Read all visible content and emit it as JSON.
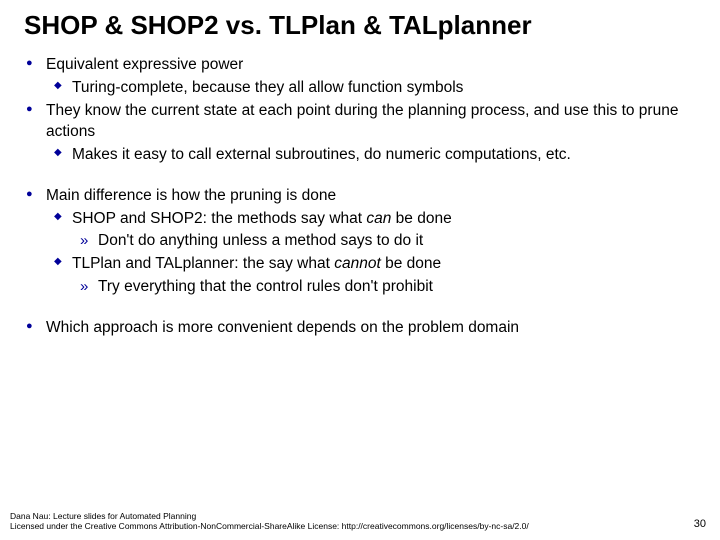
{
  "title": "SHOP & SHOP2 vs. TLPlan & TALplanner",
  "bullets": {
    "b1": "Equivalent expressive power",
    "b1a": "Turing-complete, because they all allow function symbols",
    "b2": "They know the current state at each point during the planning process, and use this to prune actions",
    "b2a": "Makes it easy to call external subroutines, do numeric computations, etc.",
    "b3": "Main difference is how the pruning is done",
    "b3a_pre": "SHOP and SHOP2: the methods say what ",
    "b3a_em": "can",
    "b3a_post": " be done",
    "b3a1": "Don't do anything unless a method says to do it",
    "b3b_pre": "TLPlan and TALplanner: the say what ",
    "b3b_em": "cannot",
    "b3b_post": " be done",
    "b3b1": "Try everything that the control rules don't prohibit",
    "b4": "Which approach is more convenient depends on the problem domain"
  },
  "footer": {
    "line1": "Dana Nau: Lecture slides for Automated Planning",
    "line2": "Licensed under the Creative Commons Attribution-NonCommercial-ShareAlike License: http://creativecommons.org/licenses/by-nc-sa/2.0/"
  },
  "page_number": "30",
  "colors": {
    "bullet": "#000099",
    "text": "#000000",
    "background": "#ffffff"
  }
}
